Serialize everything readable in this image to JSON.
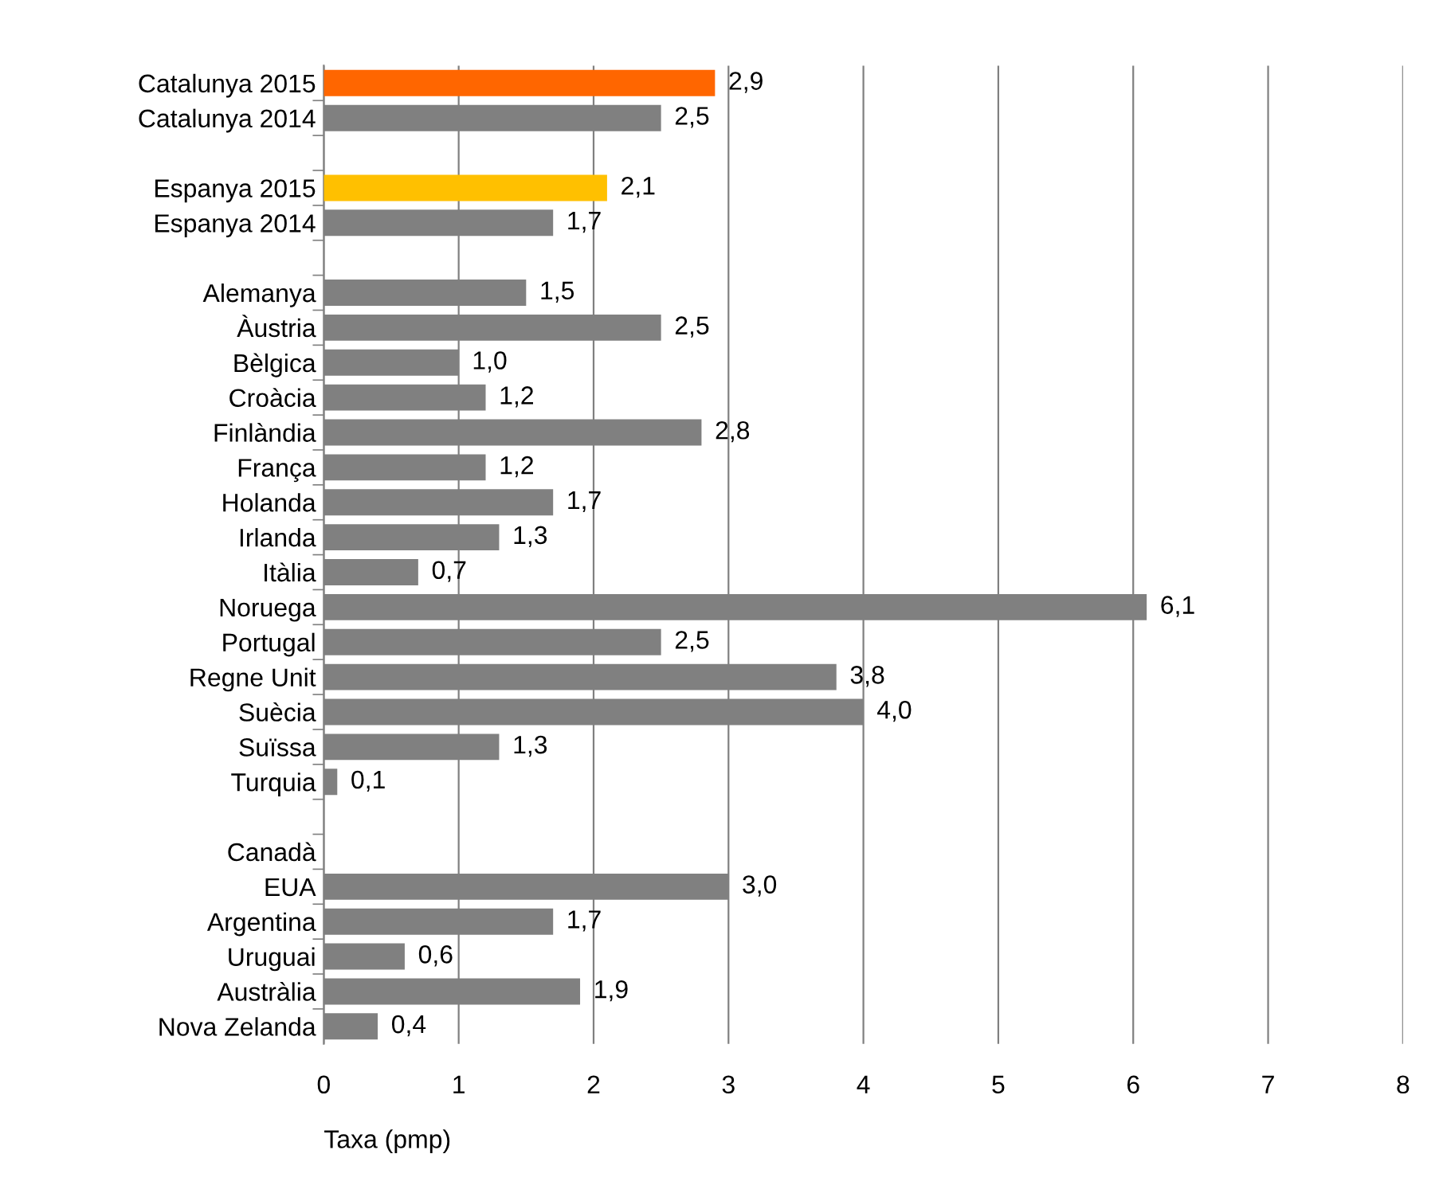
{
  "chart_data": {
    "type": "bar",
    "orientation": "horizontal",
    "xlabel": "Taxa (pmp)",
    "categories": [
      "Catalunya 2015",
      "Catalunya 2014",
      null,
      "Espanya 2015",
      "Espanya 2014",
      null,
      "Alemanya",
      "Àustria",
      "Bèlgica",
      "Croàcia",
      "Finlàndia",
      "França",
      "Holanda",
      "Irlanda",
      "Itàlia",
      "Noruega",
      "Portugal",
      "Regne Unit",
      "Suècia",
      "Suïssa",
      "Turquia",
      null,
      "Canadà",
      "EUA",
      "Argentina",
      "Uruguai",
      "Austràlia",
      "Nova Zelanda"
    ],
    "values": [
      2.9,
      2.5,
      null,
      2.1,
      1.7,
      null,
      1.5,
      2.5,
      1.0,
      1.2,
      2.8,
      1.2,
      1.7,
      1.3,
      0.7,
      6.1,
      2.5,
      3.8,
      4.0,
      1.3,
      0.1,
      null,
      null,
      3.0,
      1.7,
      0.6,
      1.9,
      0.4
    ],
    "value_labels": [
      "2,9",
      "2,5",
      null,
      "2,1",
      "1,7",
      null,
      "1,5",
      "2,5",
      "1,0",
      "1,2",
      "2,8",
      "1,2",
      "1,7",
      "1,3",
      "0,7",
      "6,1",
      "2,5",
      "3,8",
      "4,0",
      "1,3",
      "0,1",
      null,
      null,
      "3,0",
      "1,7",
      "0,6",
      "1,9",
      "0,4"
    ],
    "colors": [
      "#ff6600",
      "#808080",
      null,
      "#ffc000",
      "#808080",
      null,
      "#808080",
      "#808080",
      "#808080",
      "#808080",
      "#808080",
      "#808080",
      "#808080",
      "#808080",
      "#808080",
      "#808080",
      "#808080",
      "#808080",
      "#808080",
      "#808080",
      "#808080",
      null,
      null,
      "#808080",
      "#808080",
      "#808080",
      "#808080",
      "#808080"
    ],
    "xlim": [
      0,
      8
    ],
    "xticks": [
      0,
      1,
      2,
      3,
      4,
      5,
      6,
      7,
      8
    ],
    "grid": "x",
    "legend": false
  }
}
